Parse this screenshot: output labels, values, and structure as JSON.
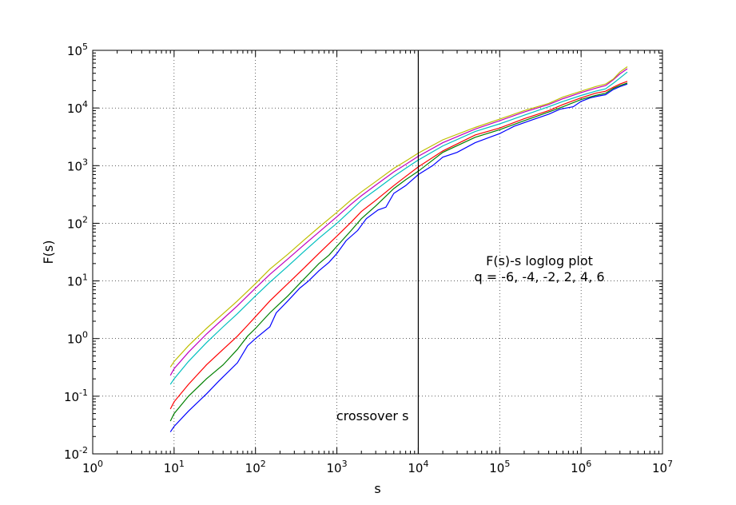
{
  "chart_data": {
    "type": "line",
    "xscale": "log",
    "yscale": "log",
    "xlim": [
      1,
      10000000
    ],
    "ylim": [
      0.01,
      100000
    ],
    "xlabel": "s",
    "ylabel": "F(s)",
    "grid": true,
    "x_ticks": [
      {
        "value": 1,
        "label": "10",
        "exp": "0"
      },
      {
        "value": 10,
        "label": "10",
        "exp": "1"
      },
      {
        "value": 100,
        "label": "10",
        "exp": "2"
      },
      {
        "value": 1000,
        "label": "10",
        "exp": "3"
      },
      {
        "value": 10000,
        "label": "10",
        "exp": "4"
      },
      {
        "value": 100000,
        "label": "10",
        "exp": "5"
      },
      {
        "value": 1000000,
        "label": "10",
        "exp": "6"
      },
      {
        "value": 10000000,
        "label": "10",
        "exp": "7"
      }
    ],
    "y_ticks": [
      {
        "value": 0.01,
        "label": "10",
        "exp": "-2"
      },
      {
        "value": 0.1,
        "label": "10",
        "exp": "-1"
      },
      {
        "value": 1,
        "label": "10",
        "exp": "0"
      },
      {
        "value": 10,
        "label": "10",
        "exp": "1"
      },
      {
        "value": 100,
        "label": "10",
        "exp": "2"
      },
      {
        "value": 1000,
        "label": "10",
        "exp": "3"
      },
      {
        "value": 10000,
        "label": "10",
        "exp": "4"
      },
      {
        "value": 100000,
        "label": "10",
        "exp": "5"
      }
    ],
    "crossover": {
      "x": 10000,
      "label": "crossover s"
    },
    "annotation_lines": [
      "F(s)-s loglog plot",
      "q = -6, -4, -2, 2, 4, 6"
    ],
    "series": [
      {
        "color": "#0000ff",
        "x": [
          9,
          10,
          15,
          25,
          35,
          60,
          80,
          100,
          150,
          180,
          250,
          350,
          450,
          600,
          800,
          1000,
          1300,
          1800,
          2300,
          3200,
          4000,
          5000,
          7000,
          10000,
          15000,
          20000,
          30000,
          50000,
          80000,
          100000,
          150000,
          250000,
          400000,
          550000,
          800000,
          1000000,
          1300000,
          1600000,
          2000000,
          2500000,
          3000000,
          3700000
        ],
        "y": [
          0.024,
          0.03,
          0.055,
          0.11,
          0.18,
          0.38,
          0.75,
          1.0,
          1.6,
          2.8,
          4.5,
          7.5,
          10,
          15,
          21,
          30,
          50,
          75,
          120,
          170,
          190,
          330,
          450,
          700,
          1000,
          1400,
          1700,
          2500,
          3200,
          3600,
          4800,
          6200,
          7800,
          9500,
          10500,
          13000,
          15000,
          16000,
          17000,
          21000,
          23500,
          26000
        ]
      },
      {
        "color": "#008000",
        "x": [
          9,
          10,
          15,
          25,
          40,
          60,
          80,
          100,
          150,
          250,
          400,
          600,
          800,
          1000,
          1500,
          2000,
          3000,
          5000,
          7000,
          10000,
          20000,
          50000,
          100000,
          200000,
          400000,
          600000,
          1000000,
          1500000,
          2000000,
          2500000,
          3000000,
          3700000
        ],
        "y": [
          0.037,
          0.05,
          0.1,
          0.2,
          0.35,
          0.65,
          1.1,
          1.5,
          2.8,
          5.5,
          11,
          20,
          28,
          40,
          75,
          120,
          200,
          400,
          570,
          800,
          1700,
          3100,
          4200,
          6000,
          8500,
          10500,
          14000,
          16500,
          18000,
          22000,
          24500,
          27000
        ]
      },
      {
        "color": "#ff0000",
        "x": [
          9,
          10,
          15,
          25,
          40,
          60,
          80,
          100,
          150,
          250,
          400,
          600,
          1000,
          1500,
          2000,
          3000,
          5000,
          7000,
          10000,
          20000,
          50000,
          100000,
          200000,
          400000,
          600000,
          1000000,
          1500000,
          2000000,
          2500000,
          3000000,
          3700000
        ],
        "y": [
          0.06,
          0.08,
          0.16,
          0.35,
          0.65,
          1.1,
          1.7,
          2.4,
          4.5,
          9,
          17,
          30,
          60,
          105,
          160,
          250,
          450,
          650,
          950,
          1800,
          3400,
          4500,
          6500,
          9000,
          11500,
          15000,
          18000,
          19500,
          23000,
          26000,
          29000
        ]
      },
      {
        "color": "#00bfbf",
        "x": [
          9,
          10,
          15,
          25,
          40,
          60,
          100,
          150,
          250,
          400,
          600,
          1000,
          1500,
          2000,
          3000,
          5000,
          7000,
          10000,
          20000,
          50000,
          100000,
          200000,
          400000,
          600000,
          1000000,
          1500000,
          2000000,
          2500000,
          3000000,
          3700000
        ],
        "y": [
          0.16,
          0.2,
          0.4,
          0.85,
          1.6,
          2.7,
          5.5,
          9.5,
          18,
          33,
          55,
          100,
          170,
          250,
          380,
          650,
          900,
          1250,
          2200,
          3900,
          5300,
          7500,
          10500,
          13000,
          16500,
          19500,
          21500,
          27000,
          33000,
          42000
        ]
      },
      {
        "color": "#bf00bf",
        "x": [
          9,
          10,
          15,
          25,
          40,
          60,
          100,
          150,
          250,
          400,
          600,
          1000,
          1500,
          2000,
          3000,
          5000,
          7000,
          10000,
          20000,
          50000,
          100000,
          200000,
          400000,
          600000,
          1000000,
          1500000,
          2000000,
          2500000,
          3000000,
          3700000
        ],
        "y": [
          0.23,
          0.3,
          0.58,
          1.2,
          2.2,
          3.7,
          7.5,
          13,
          24,
          43,
          70,
          130,
          215,
          300,
          460,
          780,
          1050,
          1450,
          2500,
          4300,
          6000,
          8500,
          11500,
          14500,
          18500,
          22000,
          24500,
          31000,
          39000,
          48000
        ]
      },
      {
        "color": "#bfbf00",
        "x": [
          9,
          10,
          15,
          25,
          40,
          60,
          100,
          150,
          250,
          400,
          600,
          1000,
          1500,
          2000,
          3000,
          5000,
          7000,
          10000,
          20000,
          50000,
          100000,
          200000,
          400000,
          600000,
          1000000,
          1500000,
          2000000,
          2500000,
          3000000,
          3700000
        ],
        "y": [
          0.32,
          0.4,
          0.75,
          1.5,
          2.7,
          4.5,
          9,
          16,
          29,
          52,
          85,
          155,
          255,
          350,
          530,
          900,
          1200,
          1650,
          2800,
          4600,
          6400,
          9000,
          12000,
          15500,
          19500,
          23500,
          26000,
          32000,
          42000,
          52000
        ]
      }
    ]
  }
}
